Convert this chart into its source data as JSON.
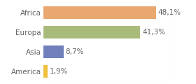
{
  "categories": [
    "America",
    "Asia",
    "Europa",
    "Africa"
  ],
  "values": [
    1.9,
    8.7,
    41.3,
    48.1
  ],
  "labels": [
    "1,9%",
    "8,7%",
    "41,3%",
    "48,1%"
  ],
  "bar_colors": [
    "#f0c040",
    "#7080bb",
    "#a8bb7a",
    "#e8a870"
  ],
  "xlim": [
    0,
    55
  ],
  "background_color": "#ffffff",
  "label_fontsize": 7.5,
  "tick_fontsize": 7.5,
  "label_color": "#666666",
  "tick_color": "#666666",
  "border_color": "#cccccc",
  "bar_height": 0.65
}
